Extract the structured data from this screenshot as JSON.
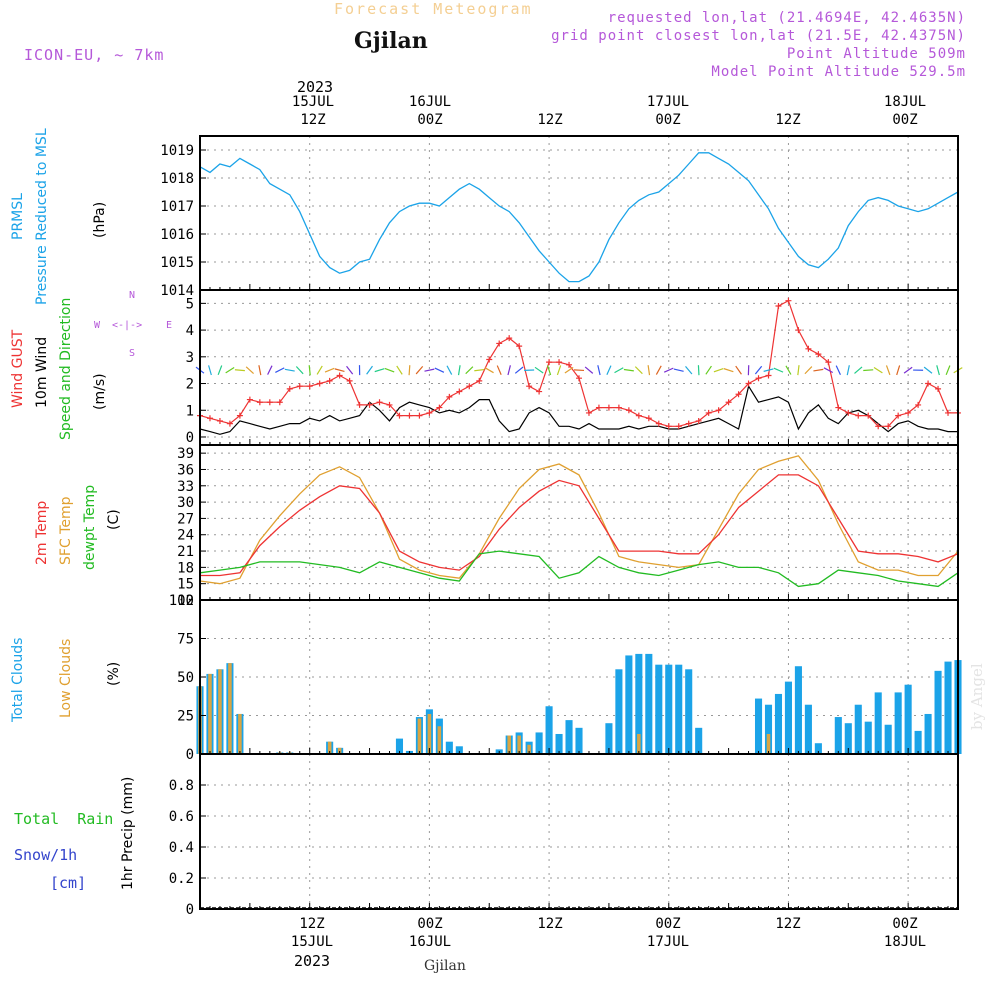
{
  "header": {
    "title": "Forecast Meteogram",
    "station": "Gjilan",
    "model": "ICON-EU, ~ 7km",
    "requested": "requested lon,lat (21.4694E, 42.4635N)",
    "grid": "grid point closest lon,lat (21.5E, 42.4375N)",
    "point_alt": "Point Altitude 509m",
    "model_alt": "Model Point Altitude 529.5m",
    "watermark": "by Angel",
    "footer_station": "Gjilan"
  },
  "time_axis": {
    "year": "2023",
    "ticks": [
      {
        "t": 12,
        "hour": "12Z",
        "date": "15JUL",
        "year": "2023"
      },
      {
        "t": 24,
        "hour": "00Z",
        "date": "16JUL",
        "year": ""
      },
      {
        "t": 36,
        "hour": "12Z",
        "date": "",
        "year": ""
      },
      {
        "t": 48,
        "hour": "00Z",
        "date": "17JUL",
        "year": ""
      },
      {
        "t": 60,
        "hour": "12Z",
        "date": "",
        "year": ""
      },
      {
        "t": 72,
        "hour": "00Z",
        "date": "18JUL",
        "year": ""
      }
    ],
    "range": [
      1,
      77
    ]
  },
  "labels": {
    "p1": [
      "PRMSL",
      "Pressure Reduced to MSL",
      "(hPa)"
    ],
    "p2": [
      "Wind GUST",
      "10m Wind",
      "Speed and Direction",
      "(m/s)"
    ],
    "p2_compass": {
      "n": "N",
      "s": "S",
      "w": "W",
      "e": "E",
      "arrows": "<-|->"
    },
    "p3": [
      "2m Temp",
      "SFC Temp",
      "dewpt Temp",
      "(C)"
    ],
    "p4": [
      "Total Clouds",
      "Low Clouds",
      "(%)"
    ],
    "p5": [
      "Total",
      "Rain",
      "Snow/1h",
      "[cm]",
      "1hr Precip (mm)"
    ]
  },
  "colors": {
    "pressure": "#1ba3e8",
    "gust": "#ee3333",
    "wind": "#000000",
    "t2m": "#ee3333",
    "sfc": "#e0a030",
    "dew": "#22bb22",
    "total_clouds": "#1ba3e8",
    "low_clouds": "#d9a544",
    "rain": "#22bb22",
    "snow": "#3344cc",
    "label_purple": "#b558d9"
  },
  "chart_data": [
    {
      "type": "line",
      "title": "PRMSL Pressure Reduced to MSL",
      "ylabel": "hPa",
      "ylim": [
        1014,
        1019.5
      ],
      "yticks": [
        1014,
        1015,
        1016,
        1017,
        1018,
        1019
      ],
      "series": [
        {
          "name": "PRMSL",
          "x": [
            1,
            2,
            3,
            4,
            5,
            6,
            7,
            8,
            9,
            10,
            11,
            12,
            13,
            14,
            15,
            16,
            17,
            18,
            19,
            20,
            21,
            22,
            23,
            24,
            25,
            26,
            27,
            28,
            29,
            30,
            31,
            32,
            33,
            34,
            35,
            36,
            37,
            38,
            39,
            40,
            41,
            42,
            43,
            44,
            45,
            46,
            47,
            48,
            49,
            50,
            51,
            52,
            53,
            54,
            55,
            56,
            57,
            58,
            59,
            60,
            61,
            62,
            63,
            64,
            65,
            66,
            67,
            68,
            69,
            70,
            71,
            72,
            73,
            74,
            75,
            76,
            77
          ],
          "values": [
            1018.4,
            1018.2,
            1018.5,
            1018.4,
            1018.7,
            1018.5,
            1018.3,
            1017.8,
            1017.6,
            1017.4,
            1016.8,
            1016,
            1015.2,
            1014.8,
            1014.6,
            1014.7,
            1015,
            1015.1,
            1015.8,
            1016.4,
            1016.8,
            1017,
            1017.1,
            1017.1,
            1017,
            1017.3,
            1017.6,
            1017.8,
            1017.6,
            1017.3,
            1017,
            1016.8,
            1016.4,
            1015.9,
            1015.4,
            1015,
            1014.6,
            1014.3,
            1014.3,
            1014.5,
            1015,
            1015.8,
            1016.4,
            1016.9,
            1017.2,
            1017.4,
            1017.5,
            1017.8,
            1018.1,
            1018.5,
            1018.9,
            1018.9,
            1018.7,
            1018.5,
            1018.2,
            1017.9,
            1017.4,
            1016.9,
            1016.2,
            1015.7,
            1015.2,
            1014.9,
            1014.8,
            1015.1,
            1015.5,
            1016.3,
            1016.8,
            1017.2,
            1017.3,
            1017.2,
            1017,
            1016.9,
            1016.8,
            1016.9,
            1017.1,
            1017.3,
            1017.5
          ]
        }
      ]
    },
    {
      "type": "line",
      "title": "Wind GUST / 10m Wind Speed and Direction",
      "ylabel": "m/s",
      "ylim": [
        -0.3,
        5.5
      ],
      "yticks": [
        0,
        1,
        2,
        3,
        4,
        5
      ],
      "series": [
        {
          "name": "Wind GUST",
          "x": [
            1,
            2,
            3,
            4,
            5,
            6,
            7,
            8,
            9,
            10,
            11,
            12,
            13,
            14,
            15,
            16,
            17,
            18,
            19,
            20,
            21,
            22,
            23,
            24,
            25,
            26,
            27,
            28,
            29,
            30,
            31,
            32,
            33,
            34,
            35,
            36,
            37,
            38,
            39,
            40,
            41,
            42,
            43,
            44,
            45,
            46,
            47,
            48,
            49,
            50,
            51,
            52,
            53,
            54,
            55,
            56,
            57,
            58,
            59,
            60,
            61,
            62,
            63,
            64,
            65,
            66,
            67,
            68,
            69,
            70,
            71,
            72,
            73,
            74,
            75,
            76,
            77
          ],
          "values": [
            0.8,
            0.7,
            0.6,
            0.5,
            0.8,
            1.4,
            1.3,
            1.3,
            1.3,
            1.8,
            1.9,
            1.9,
            2,
            2.1,
            2.3,
            2.1,
            1.2,
            1.2,
            1.3,
            1.2,
            0.8,
            0.8,
            0.8,
            0.9,
            1.1,
            1.5,
            1.7,
            1.9,
            2.1,
            2.9,
            3.5,
            3.7,
            3.4,
            1.9,
            1.7,
            2.8,
            2.8,
            2.7,
            2.2,
            0.9,
            1.1,
            1.1,
            1.1,
            1,
            0.8,
            0.7,
            0.5,
            0.4,
            0.4,
            0.5,
            0.6,
            0.9,
            1,
            1.3,
            1.6,
            2,
            2.2,
            2.3,
            4.9,
            5.1,
            4,
            3.3,
            3.1,
            2.8,
            1.1,
            0.9,
            0.8,
            0.8,
            0.4,
            0.4,
            0.8,
            0.9,
            1.2,
            2,
            1.8,
            0.9,
            0.9
          ]
        },
        {
          "name": "10m Wind",
          "x": [
            1,
            2,
            3,
            4,
            5,
            6,
            7,
            8,
            9,
            10,
            11,
            12,
            13,
            14,
            15,
            16,
            17,
            18,
            19,
            20,
            21,
            22,
            23,
            24,
            25,
            26,
            27,
            28,
            29,
            30,
            31,
            32,
            33,
            34,
            35,
            36,
            37,
            38,
            39,
            40,
            41,
            42,
            43,
            44,
            45,
            46,
            47,
            48,
            49,
            50,
            51,
            52,
            53,
            54,
            55,
            56,
            57,
            58,
            59,
            60,
            61,
            62,
            63,
            64,
            65,
            66,
            67,
            68,
            69,
            70,
            71,
            72,
            73,
            74,
            75,
            76,
            77
          ],
          "values": [
            0.3,
            0.2,
            0.1,
            0.2,
            0.6,
            0.5,
            0.4,
            0.3,
            0.4,
            0.5,
            0.5,
            0.7,
            0.6,
            0.8,
            0.6,
            0.7,
            0.8,
            1.3,
            1,
            0.6,
            1.1,
            1.3,
            1.2,
            1.1,
            0.9,
            1,
            0.9,
            1.1,
            1.4,
            1.4,
            0.6,
            0.2,
            0.3,
            0.9,
            1.1,
            0.9,
            0.4,
            0.4,
            0.3,
            0.5,
            0.3,
            0.3,
            0.3,
            0.4,
            0.3,
            0.4,
            0.4,
            0.3,
            0.3,
            0.4,
            0.5,
            0.6,
            0.7,
            0.5,
            0.3,
            1.9,
            1.3,
            1.4,
            1.5,
            1.3,
            0.3,
            0.9,
            1.2,
            0.7,
            0.5,
            0.9,
            1,
            0.8,
            0.5,
            0.2,
            0.5,
            0.6,
            0.4,
            0.3,
            0.3,
            0.2,
            0.2
          ]
        }
      ]
    },
    {
      "type": "line",
      "title": "2m Temp / SFC Temp / dewpt Temp",
      "ylabel": "C",
      "ylim": [
        12,
        40.5
      ],
      "yticks": [
        12,
        15,
        18,
        21,
        24,
        27,
        30,
        33,
        36,
        39
      ],
      "series": [
        {
          "name": "2m Temp",
          "x": [
            1,
            3,
            5,
            7,
            9,
            11,
            13,
            15,
            17,
            19,
            21,
            23,
            25,
            27,
            29,
            31,
            33,
            35,
            37,
            39,
            41,
            43,
            45,
            47,
            49,
            51,
            53,
            55,
            57,
            59,
            61,
            63,
            65,
            67,
            69,
            71,
            73,
            75,
            77
          ],
          "values": [
            16.5,
            16.5,
            17,
            22,
            25.5,
            28.5,
            31,
            33,
            32.5,
            28,
            21,
            19,
            18,
            17.5,
            20,
            25,
            29,
            32,
            34,
            33,
            27,
            21,
            21,
            21,
            20.5,
            20.5,
            24,
            29,
            32,
            35,
            35,
            33,
            27,
            21,
            20.5,
            20.5,
            20,
            19,
            20.5
          ]
        },
        {
          "name": "SFC Temp",
          "x": [
            1,
            3,
            5,
            7,
            9,
            11,
            13,
            15,
            17,
            19,
            21,
            23,
            25,
            27,
            29,
            31,
            33,
            35,
            37,
            39,
            41,
            43,
            45,
            47,
            49,
            51,
            53,
            55,
            57,
            59,
            61,
            63,
            65,
            67,
            69,
            71,
            73,
            75,
            77
          ],
          "values": [
            15.5,
            15,
            16,
            23,
            27.5,
            31.5,
            35,
            36.5,
            34.5,
            28,
            19.5,
            17.5,
            16.5,
            16,
            20.5,
            27,
            32.5,
            36,
            37,
            35,
            28,
            20,
            19,
            18.5,
            18,
            18.5,
            25,
            31.5,
            36,
            37.5,
            38.5,
            34,
            26,
            19,
            17.5,
            17.5,
            16.5,
            16.5,
            21
          ]
        },
        {
          "name": "dewpt Temp",
          "x": [
            1,
            3,
            5,
            7,
            9,
            11,
            13,
            15,
            17,
            19,
            21,
            23,
            25,
            27,
            29,
            31,
            33,
            35,
            37,
            39,
            41,
            43,
            45,
            47,
            49,
            51,
            53,
            55,
            57,
            59,
            61,
            63,
            65,
            67,
            69,
            71,
            73,
            75,
            77
          ],
          "values": [
            17,
            17.5,
            18,
            19,
            19,
            19,
            18.5,
            18,
            17,
            19,
            18,
            17,
            16,
            15.5,
            20.5,
            21,
            20.5,
            20,
            16,
            17,
            20,
            18,
            17,
            16.5,
            17.5,
            18.5,
            19,
            18,
            18,
            17,
            14.5,
            15,
            17.5,
            17,
            16.5,
            15.5,
            15,
            14.5,
            17
          ]
        }
      ]
    },
    {
      "type": "bar",
      "title": "Total Clouds / Low Clouds",
      "ylabel": "%",
      "ylim": [
        0,
        100
      ],
      "yticks": [
        0,
        25,
        50,
        75,
        100
      ],
      "x": [
        1,
        2,
        3,
        4,
        5,
        6,
        7,
        8,
        9,
        10,
        11,
        12,
        13,
        14,
        15,
        16,
        17,
        18,
        19,
        20,
        21,
        22,
        23,
        24,
        25,
        26,
        27,
        28,
        29,
        30,
        31,
        32,
        33,
        34,
        35,
        36,
        37,
        38,
        39,
        40,
        41,
        42,
        43,
        44,
        45,
        46,
        47,
        48,
        49,
        50,
        51,
        52,
        53,
        54,
        55,
        56,
        57,
        58,
        59,
        60,
        61,
        62,
        63,
        64,
        65,
        66,
        67,
        68,
        69,
        70,
        71,
        72,
        73,
        74,
        75,
        76,
        77
      ],
      "series": [
        {
          "name": "Total Clouds",
          "values": [
            44,
            52,
            55,
            59,
            26,
            0,
            0,
            0,
            1,
            1,
            0,
            0,
            0,
            8,
            4,
            0,
            0,
            0,
            0,
            0,
            10,
            2,
            24,
            29,
            23,
            8,
            5,
            0,
            0,
            0,
            3,
            12,
            14,
            8,
            14,
            31,
            13,
            22,
            17,
            0,
            0,
            20,
            55,
            64,
            65,
            65,
            58,
            58,
            58,
            55,
            17,
            0,
            0,
            0,
            0,
            0,
            36,
            32,
            39,
            47,
            57,
            32,
            7,
            0,
            24,
            20,
            32,
            21,
            40,
            19,
            40,
            45,
            15,
            26,
            54,
            60,
            61
          ]
        },
        {
          "name": "Low Clouds",
          "values": [
            44,
            52,
            55,
            59,
            26,
            0,
            0,
            0,
            1,
            1,
            0,
            0,
            0,
            8,
            4,
            0,
            0,
            0,
            0,
            0,
            0,
            0,
            23,
            26,
            18,
            0,
            0,
            0,
            0,
            0,
            0,
            12,
            12,
            6,
            0,
            0,
            0,
            0,
            0,
            0,
            0,
            0,
            0,
            0,
            13,
            0,
            0,
            0,
            0,
            0,
            0,
            0,
            0,
            0,
            0,
            0,
            0,
            13,
            0,
            0,
            0,
            0,
            0,
            0,
            0,
            0,
            0,
            0,
            0,
            0,
            0,
            0,
            0,
            0,
            0,
            0,
            0
          ]
        }
      ]
    },
    {
      "type": "bar",
      "title": "1hr Precip",
      "ylabel": "1hr Precip (mm)",
      "ylim": [
        0,
        1.0
      ],
      "yticks": [
        0,
        0.2,
        0.4,
        0.6,
        0.8
      ],
      "series": [
        {
          "name": "Total Rain",
          "values": [
            0
          ]
        },
        {
          "name": "Snow/1h",
          "values": [
            0
          ]
        }
      ]
    }
  ]
}
